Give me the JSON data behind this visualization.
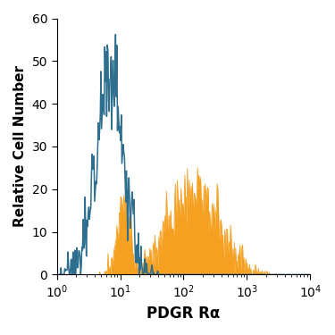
{
  "title": "",
  "xlabel": "PDGR Rα",
  "ylabel": "Relative Cell Number",
  "ylim": [
    0,
    60
  ],
  "yticks": [
    0,
    10,
    20,
    30,
    40,
    50,
    60
  ],
  "blue_color": "#2e6e8e",
  "orange_color": "#f5a020",
  "background_color": "#ffffff",
  "xlabel_fontsize": 12,
  "ylabel_fontsize": 11,
  "tick_fontsize": 10
}
